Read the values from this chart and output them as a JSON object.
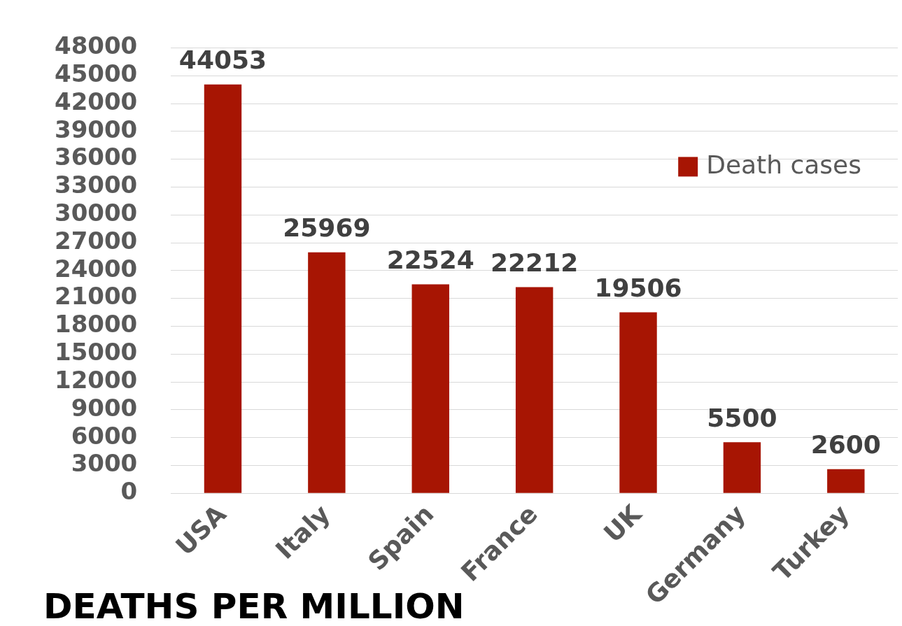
{
  "chart_data": {
    "type": "bar",
    "title": "DEATHS PER MILLION",
    "categories": [
      "USA",
      "Italy",
      "Spain",
      "France",
      "UK",
      "Germany",
      "Turkey"
    ],
    "series": [
      {
        "name": "Death cases",
        "color": "#a71503",
        "values": [
          44053,
          25969,
          22524,
          22212,
          19506,
          5500,
          2600
        ]
      }
    ],
    "ylim": [
      0,
      48000
    ],
    "yticks": [
      0,
      3000,
      6000,
      9000,
      12000,
      15000,
      18000,
      21000,
      24000,
      27000,
      30000,
      33000,
      36000,
      39000,
      42000,
      45000,
      48000
    ],
    "grid": "y",
    "legend": "top right",
    "data_labels": true
  }
}
